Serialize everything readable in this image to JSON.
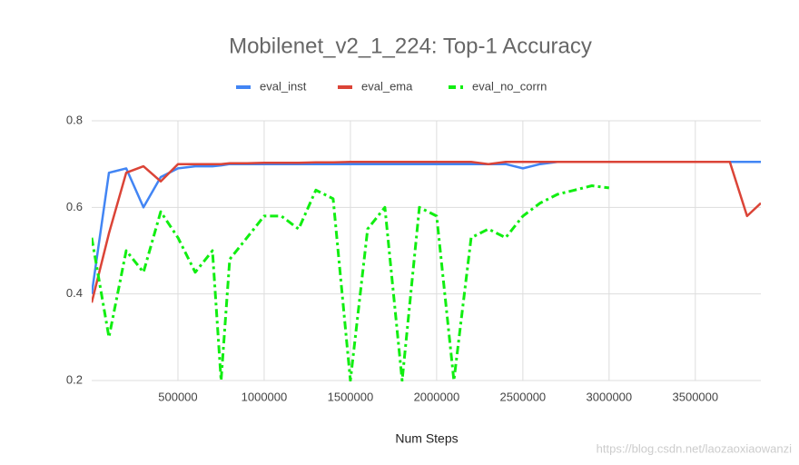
{
  "chart_data": {
    "type": "line",
    "title": "Mobilenet_v2_1_224: Top-1 Accuracy",
    "x_label": "Num Steps",
    "watermark": "https://blog.csdn.net/laozaoxiaowanzi",
    "x": [
      0,
      100000,
      200000,
      300000,
      400000,
      500000,
      600000,
      700000,
      750000,
      800000,
      900000,
      1000000,
      1100000,
      1200000,
      1300000,
      1400000,
      1500000,
      1600000,
      1700000,
      1800000,
      1900000,
      2000000,
      2100000,
      2200000,
      2300000,
      2400000,
      2500000,
      2600000,
      2700000,
      2800000,
      2900000,
      3000000,
      3100000,
      3200000,
      3300000,
      3400000,
      3500000,
      3600000,
      3700000,
      3800000,
      3880000
    ],
    "series": [
      {
        "name": "eval_inst",
        "color": "#4285f4",
        "dash": false,
        "values": [
          0.4,
          0.68,
          0.69,
          0.6,
          0.67,
          0.69,
          0.695,
          0.695,
          0.697,
          0.7,
          0.7,
          0.7,
          0.7,
          0.7,
          0.7,
          0.7,
          0.7,
          0.7,
          0.7,
          0.7,
          0.7,
          0.7,
          0.7,
          0.7,
          0.7,
          0.7,
          0.69,
          0.7,
          0.705,
          0.705,
          0.705,
          0.705,
          0.705,
          0.705,
          0.705,
          0.705,
          0.705,
          0.705,
          0.705,
          0.705,
          0.705
        ]
      },
      {
        "name": "eval_ema",
        "color": "#db4437",
        "dash": false,
        "values": [
          0.38,
          0.54,
          0.68,
          0.695,
          0.66,
          0.7,
          0.7,
          0.7,
          0.7,
          0.702,
          0.702,
          0.703,
          0.703,
          0.703,
          0.704,
          0.704,
          0.705,
          0.705,
          0.705,
          0.705,
          0.705,
          0.705,
          0.705,
          0.705,
          0.7,
          0.705,
          0.705,
          0.705,
          0.705,
          0.705,
          0.705,
          0.705,
          0.705,
          0.705,
          0.705,
          0.705,
          0.705,
          0.705,
          0.705,
          0.58,
          0.61
        ]
      },
      {
        "name": "eval_no_corrn",
        "color": "#11ee11",
        "dash": true,
        "values": [
          0.53,
          0.3,
          0.5,
          0.45,
          0.59,
          0.53,
          0.45,
          0.5,
          0.2,
          0.48,
          0.53,
          0.58,
          0.58,
          0.55,
          0.64,
          0.62,
          0.2,
          0.55,
          0.6,
          0.2,
          0.6,
          0.58,
          0.2,
          0.53,
          0.55,
          0.53,
          0.58,
          0.61,
          0.63,
          0.64,
          0.65,
          0.645,
          null,
          null,
          null,
          null,
          null,
          null,
          null,
          null,
          null
        ]
      }
    ],
    "xlim": [
      0,
      3880000
    ],
    "ylim": [
      0.2,
      0.8
    ],
    "xticks": [
      500000,
      1000000,
      1500000,
      2000000,
      2500000,
      3000000,
      3500000
    ],
    "yticks": [
      0.2,
      0.4,
      0.6,
      0.8
    ],
    "grid": true
  }
}
